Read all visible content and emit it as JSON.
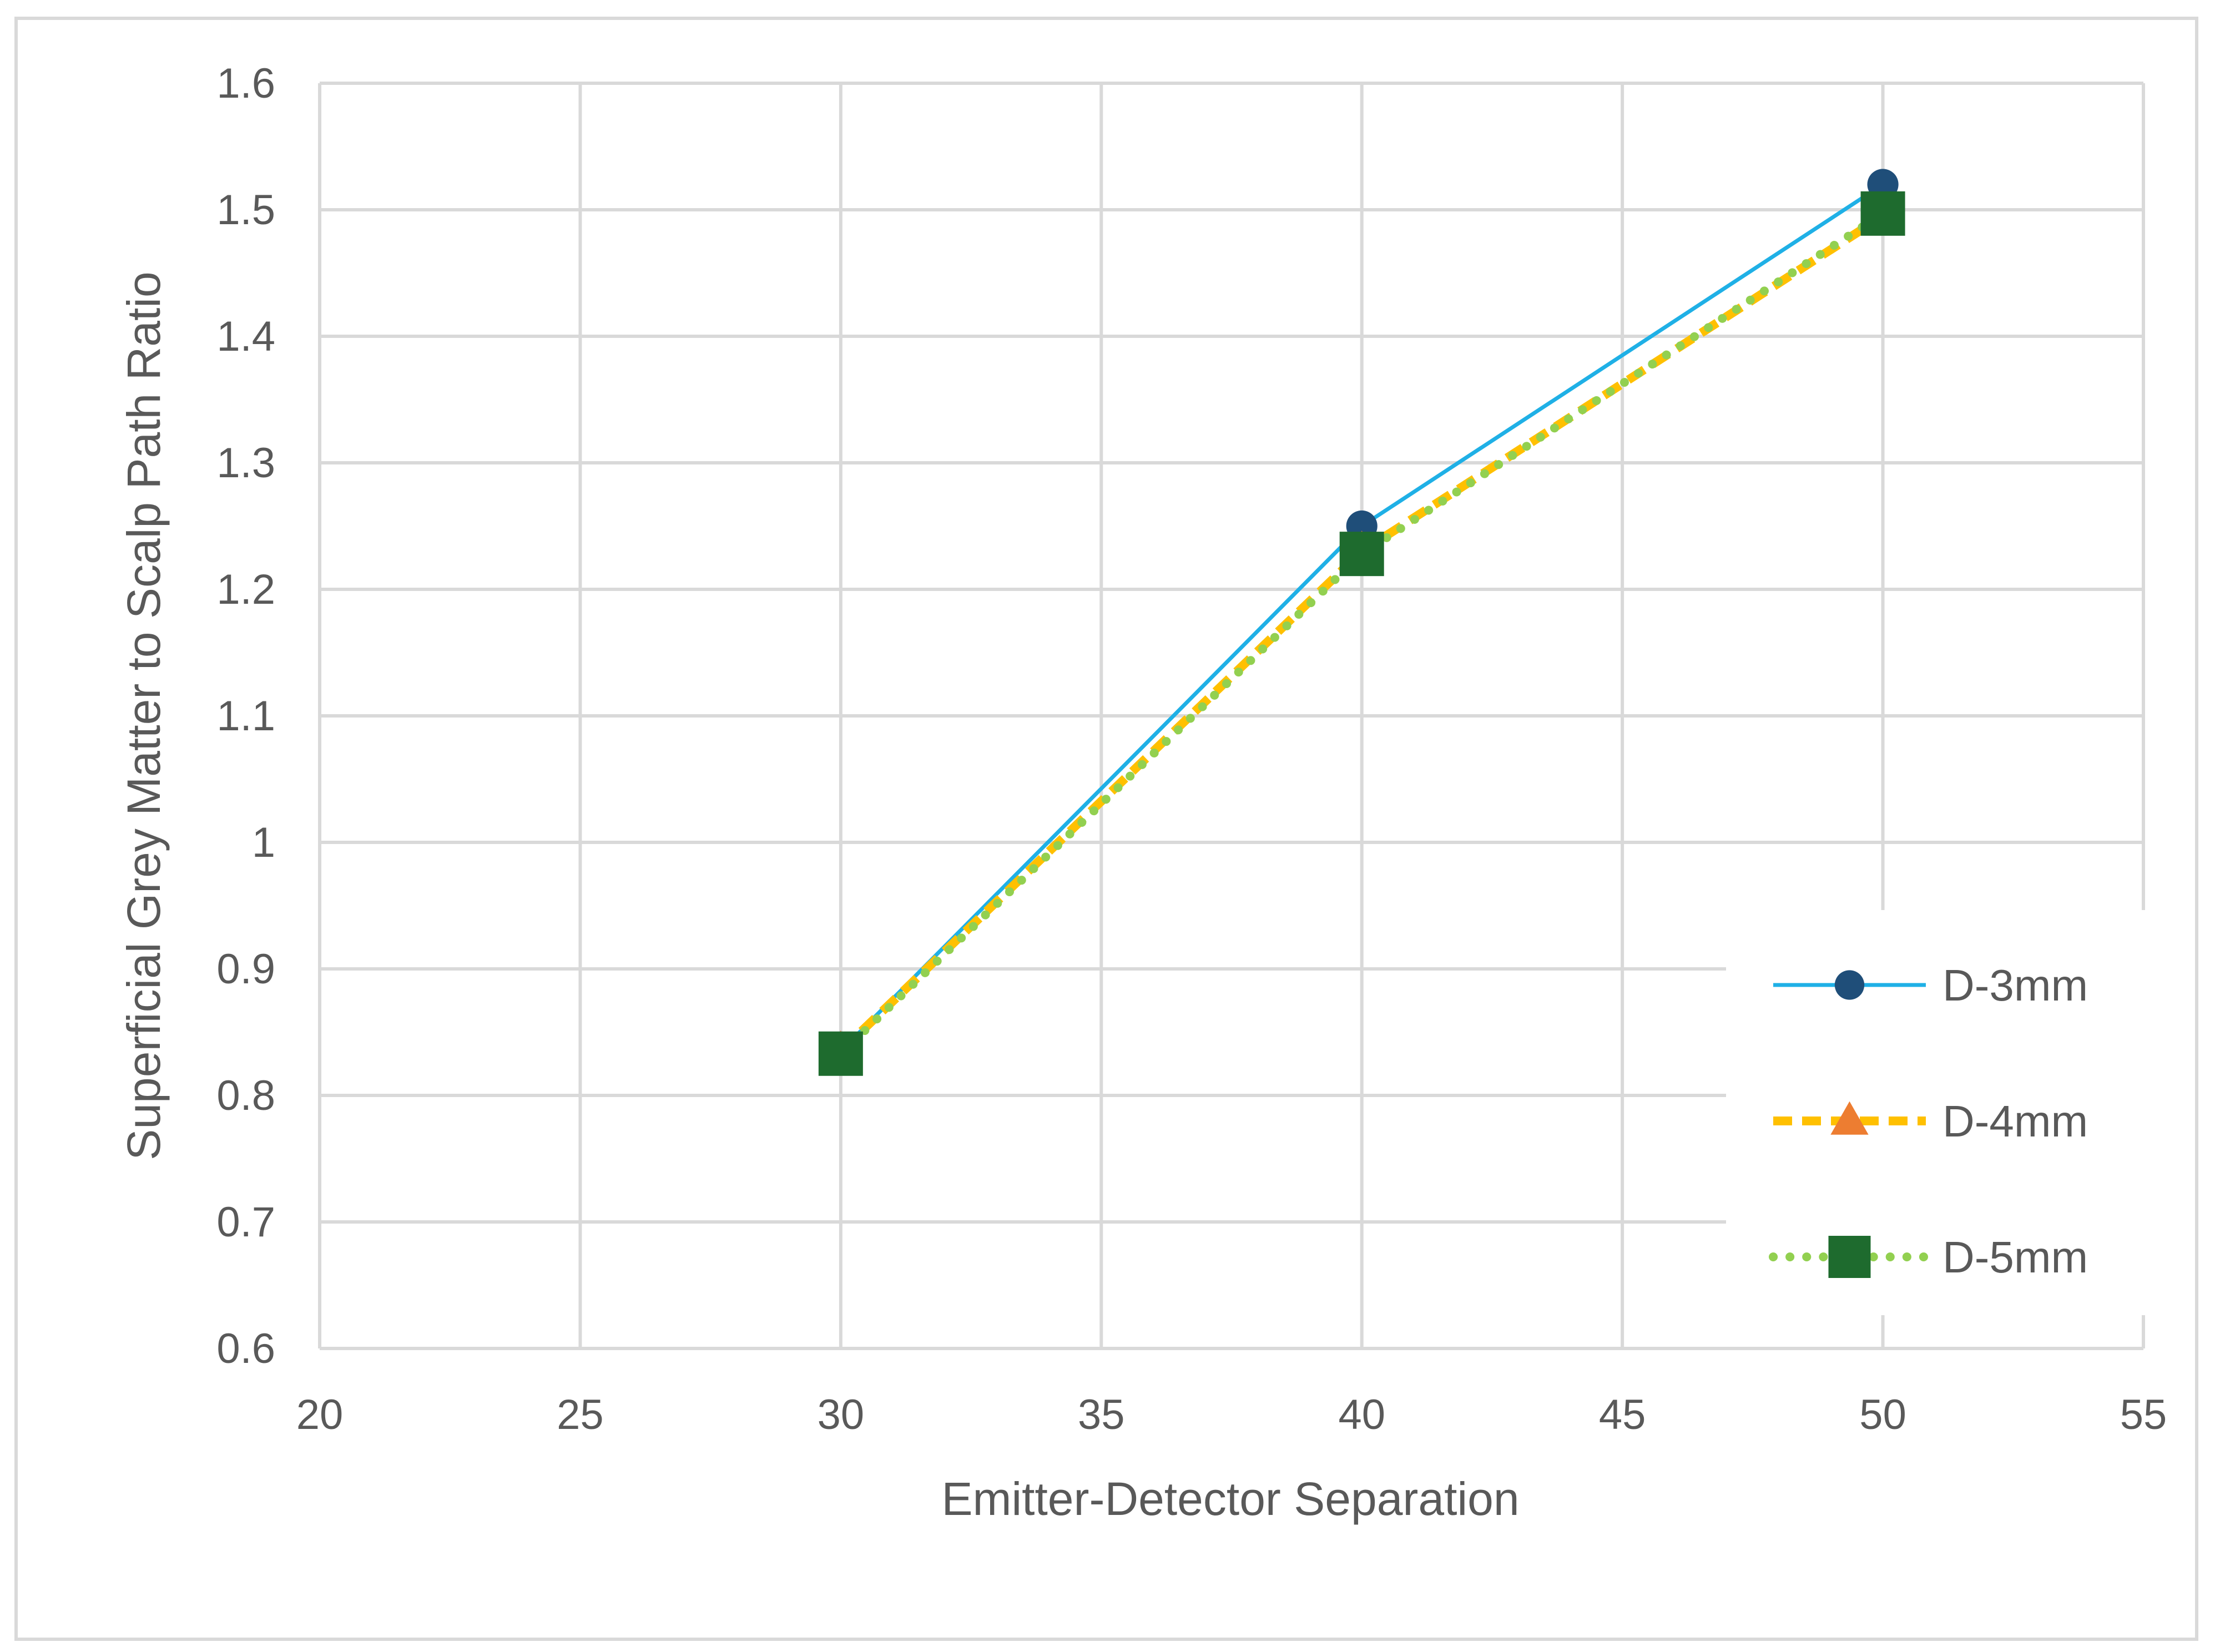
{
  "chart_data": {
    "type": "line",
    "title": "",
    "xlabel": "Emitter-Detector Separation",
    "ylabel": "Superficial Grey Matter to Scalp Path Ratio",
    "xlim": [
      20,
      55
    ],
    "ylim": [
      0.6,
      1.6
    ],
    "xticks": [
      20,
      25,
      30,
      35,
      40,
      45,
      50,
      55
    ],
    "yticks": [
      0.6,
      0.7,
      0.8,
      0.9,
      1,
      1.1,
      1.2,
      1.3,
      1.4,
      1.5,
      1.6
    ],
    "xtick_labels": [
      "20",
      "25",
      "30",
      "35",
      "40",
      "45",
      "50",
      "55"
    ],
    "ytick_labels": [
      "0.6",
      "0.7",
      "0.8",
      "0.9",
      "1",
      "1.1",
      "1.2",
      "1.3",
      "1.4",
      "1.5",
      "1.6"
    ],
    "grid": true,
    "legend_position": "bottom-right",
    "x": [
      30,
      40,
      50
    ],
    "series": [
      {
        "name": "D-3mm",
        "values": [
          0.835,
          1.25,
          1.52
        ],
        "line_color": "#1fb0e6",
        "line_style": "solid",
        "marker": "circle",
        "marker_color": "#1f4e79"
      },
      {
        "name": "D-4mm",
        "values": [
          0.835,
          1.23,
          1.495
        ],
        "line_color": "#ffc000",
        "line_style": "dashed",
        "marker": "triangle",
        "marker_color": "#ed7d31"
      },
      {
        "name": "D-5mm",
        "values": [
          0.833,
          1.228,
          1.497
        ],
        "line_color": "#92d050",
        "line_style": "dotted",
        "marker": "square",
        "marker_color": "#1e6b2e"
      }
    ],
    "grid_color": "#d9d9d9"
  }
}
